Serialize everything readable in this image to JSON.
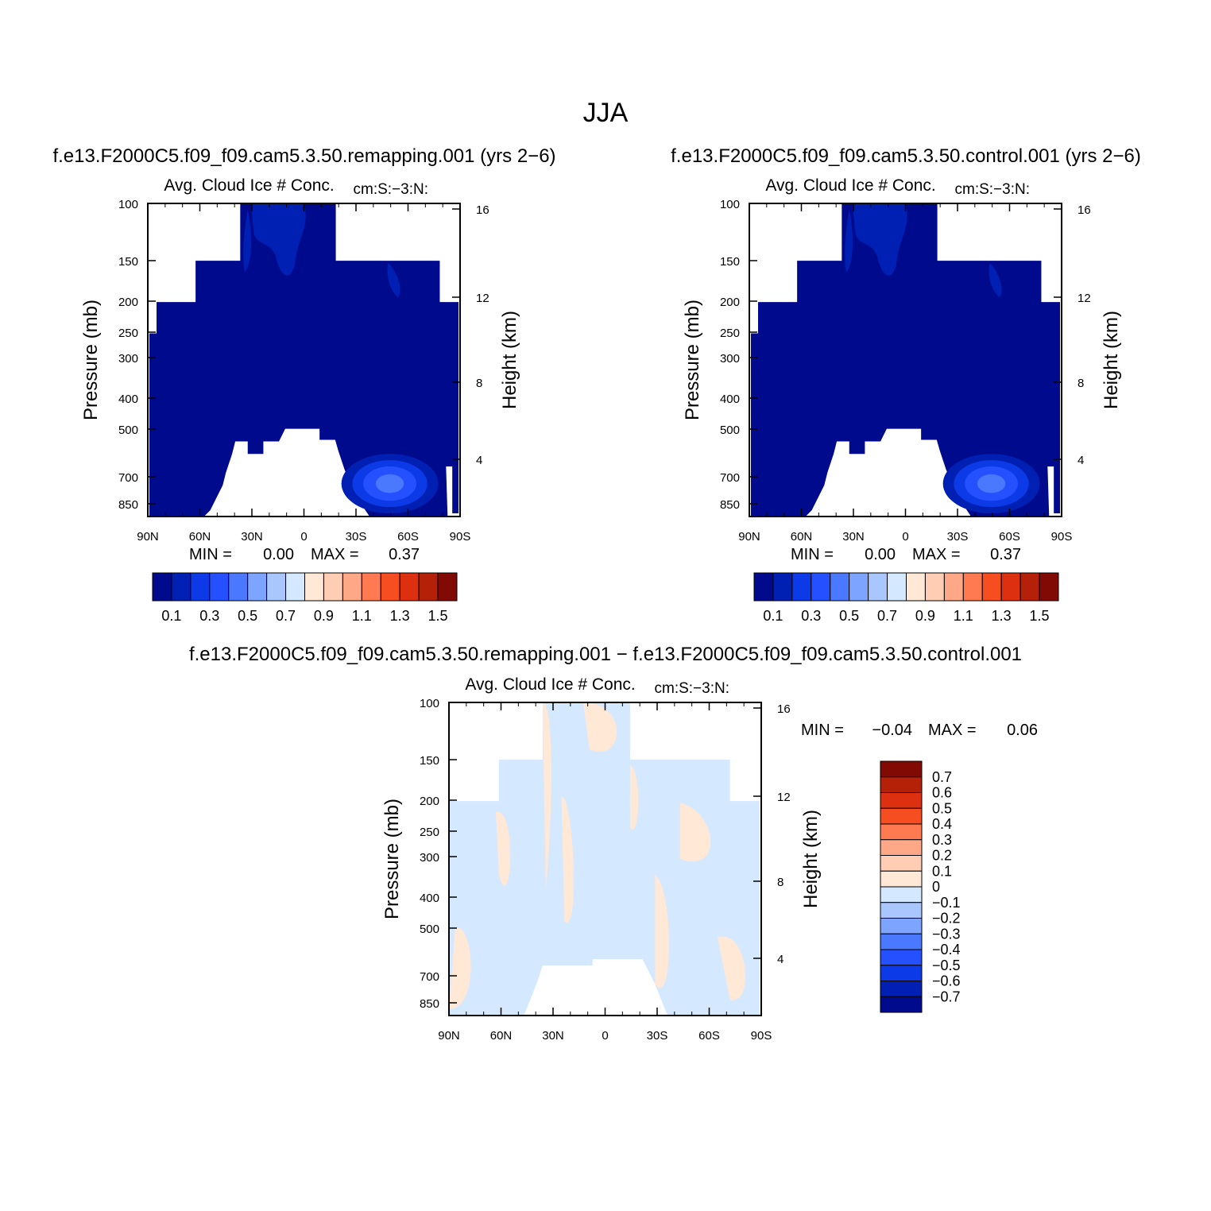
{
  "figure_title": "JJA",
  "colors": {
    "frame": "#000000",
    "background": "#ffffff",
    "abs_scale": [
      "#000a8c",
      "#0020b4",
      "#0c3ae6",
      "#2550ff",
      "#4a78ff",
      "#7da4ff",
      "#a9c6ff",
      "#d4e8ff",
      "#ffe8d6",
      "#ffcdb4",
      "#ffa888",
      "#ff7a50",
      "#f64e20",
      "#dc3010",
      "#b42008",
      "#820a04"
    ],
    "diff_scale": [
      "#000a8c",
      "#0020b4",
      "#0c3ae6",
      "#2550ff",
      "#4a78ff",
      "#7da4ff",
      "#a9c6ff",
      "#d4e8ff",
      "#ffe8d6",
      "#ffcdb4",
      "#ffa888",
      "#ff7a50",
      "#f64e20",
      "#dc3010",
      "#b42008",
      "#820a04"
    ]
  },
  "icons": {
    "colorbar": "filled-rectangle-swatches"
  },
  "chart_data": [
    {
      "type": "heatmap",
      "panel": "remapping",
      "title": "f.e13.F2000C5.f09_f09.cam5.3.50.remapping.001 (yrs 2−6)",
      "subtitle": "Avg. Cloud Ice # Conc.",
      "units": "cm:S:−3:N:",
      "xlabel": "",
      "ylabel": "Pressure (mb)",
      "y2label": "Height (km)",
      "x_ticks": [
        "90N",
        "60N",
        "30N",
        "0",
        "30S",
        "60S",
        "90S"
      ],
      "y_ticks": [
        "100",
        "150",
        "200",
        "250",
        "300",
        "400",
        "500",
        "700",
        "850"
      ],
      "y2_ticks": [
        "16",
        "12",
        "8",
        "4"
      ],
      "ylim": [
        100,
        925
      ],
      "scale": "log-pressure",
      "stats": {
        "min_label": "MIN =",
        "min": "0.00",
        "max_label": "MAX =",
        "max": "0.37"
      },
      "colorbar_labels": [
        "0.1",
        "0.3",
        "0.5",
        "0.7",
        "0.9",
        "1.1",
        "1.3",
        "1.5"
      ],
      "observed_max": 0.37,
      "feature": "local maximum near 50S–60S at ~700 mb"
    },
    {
      "type": "heatmap",
      "panel": "control",
      "title": "f.e13.F2000C5.f09_f09.cam5.3.50.control.001 (yrs 2−6)",
      "subtitle": "Avg. Cloud Ice # Conc.",
      "units": "cm:S:−3:N:",
      "xlabel": "",
      "ylabel": "Pressure (mb)",
      "y2label": "Height (km)",
      "x_ticks": [
        "90N",
        "60N",
        "30N",
        "0",
        "30S",
        "60S",
        "90S"
      ],
      "y_ticks": [
        "100",
        "150",
        "200",
        "250",
        "300",
        "400",
        "500",
        "700",
        "850"
      ],
      "y2_ticks": [
        "16",
        "12",
        "8",
        "4"
      ],
      "ylim": [
        100,
        925
      ],
      "scale": "log-pressure",
      "stats": {
        "min_label": "MIN =",
        "min": "0.00",
        "max_label": "MAX =",
        "max": "0.37"
      },
      "colorbar_labels": [
        "0.1",
        "0.3",
        "0.5",
        "0.7",
        "0.9",
        "1.1",
        "1.3",
        "1.5"
      ],
      "observed_max": 0.37,
      "feature": "local maximum near 50S–60S at ~700 mb"
    },
    {
      "type": "heatmap",
      "panel": "difference",
      "title": "f.e13.F2000C5.f09_f09.cam5.3.50.remapping.001 − f.e13.F2000C5.f09_f09.cam5.3.50.control.001",
      "subtitle": "Avg. Cloud Ice # Conc.",
      "units": "cm:S:−3:N:",
      "xlabel": "",
      "ylabel": "Pressure (mb)",
      "y2label": "Height (km)",
      "x_ticks": [
        "90N",
        "60N",
        "30N",
        "0",
        "30S",
        "60S",
        "90S"
      ],
      "y_ticks": [
        "100",
        "150",
        "200",
        "250",
        "300",
        "400",
        "500",
        "700",
        "850"
      ],
      "y2_ticks": [
        "16",
        "12",
        "8",
        "4"
      ],
      "ylim": [
        100,
        925
      ],
      "scale": "log-pressure",
      "stats": {
        "min_label": "MIN =",
        "min": "−0.04",
        "max_label": "MAX =",
        "max": "0.06"
      },
      "colorbar_labels": [
        "0.7",
        "0.6",
        "0.5",
        "0.4",
        "0.3",
        "0.2",
        "0.1",
        "0",
        "−0.1",
        "−0.2",
        "−0.3",
        "−0.4",
        "−0.5",
        "−0.6",
        "−0.7"
      ],
      "observed_range": [
        -0.04,
        0.06
      ]
    }
  ]
}
